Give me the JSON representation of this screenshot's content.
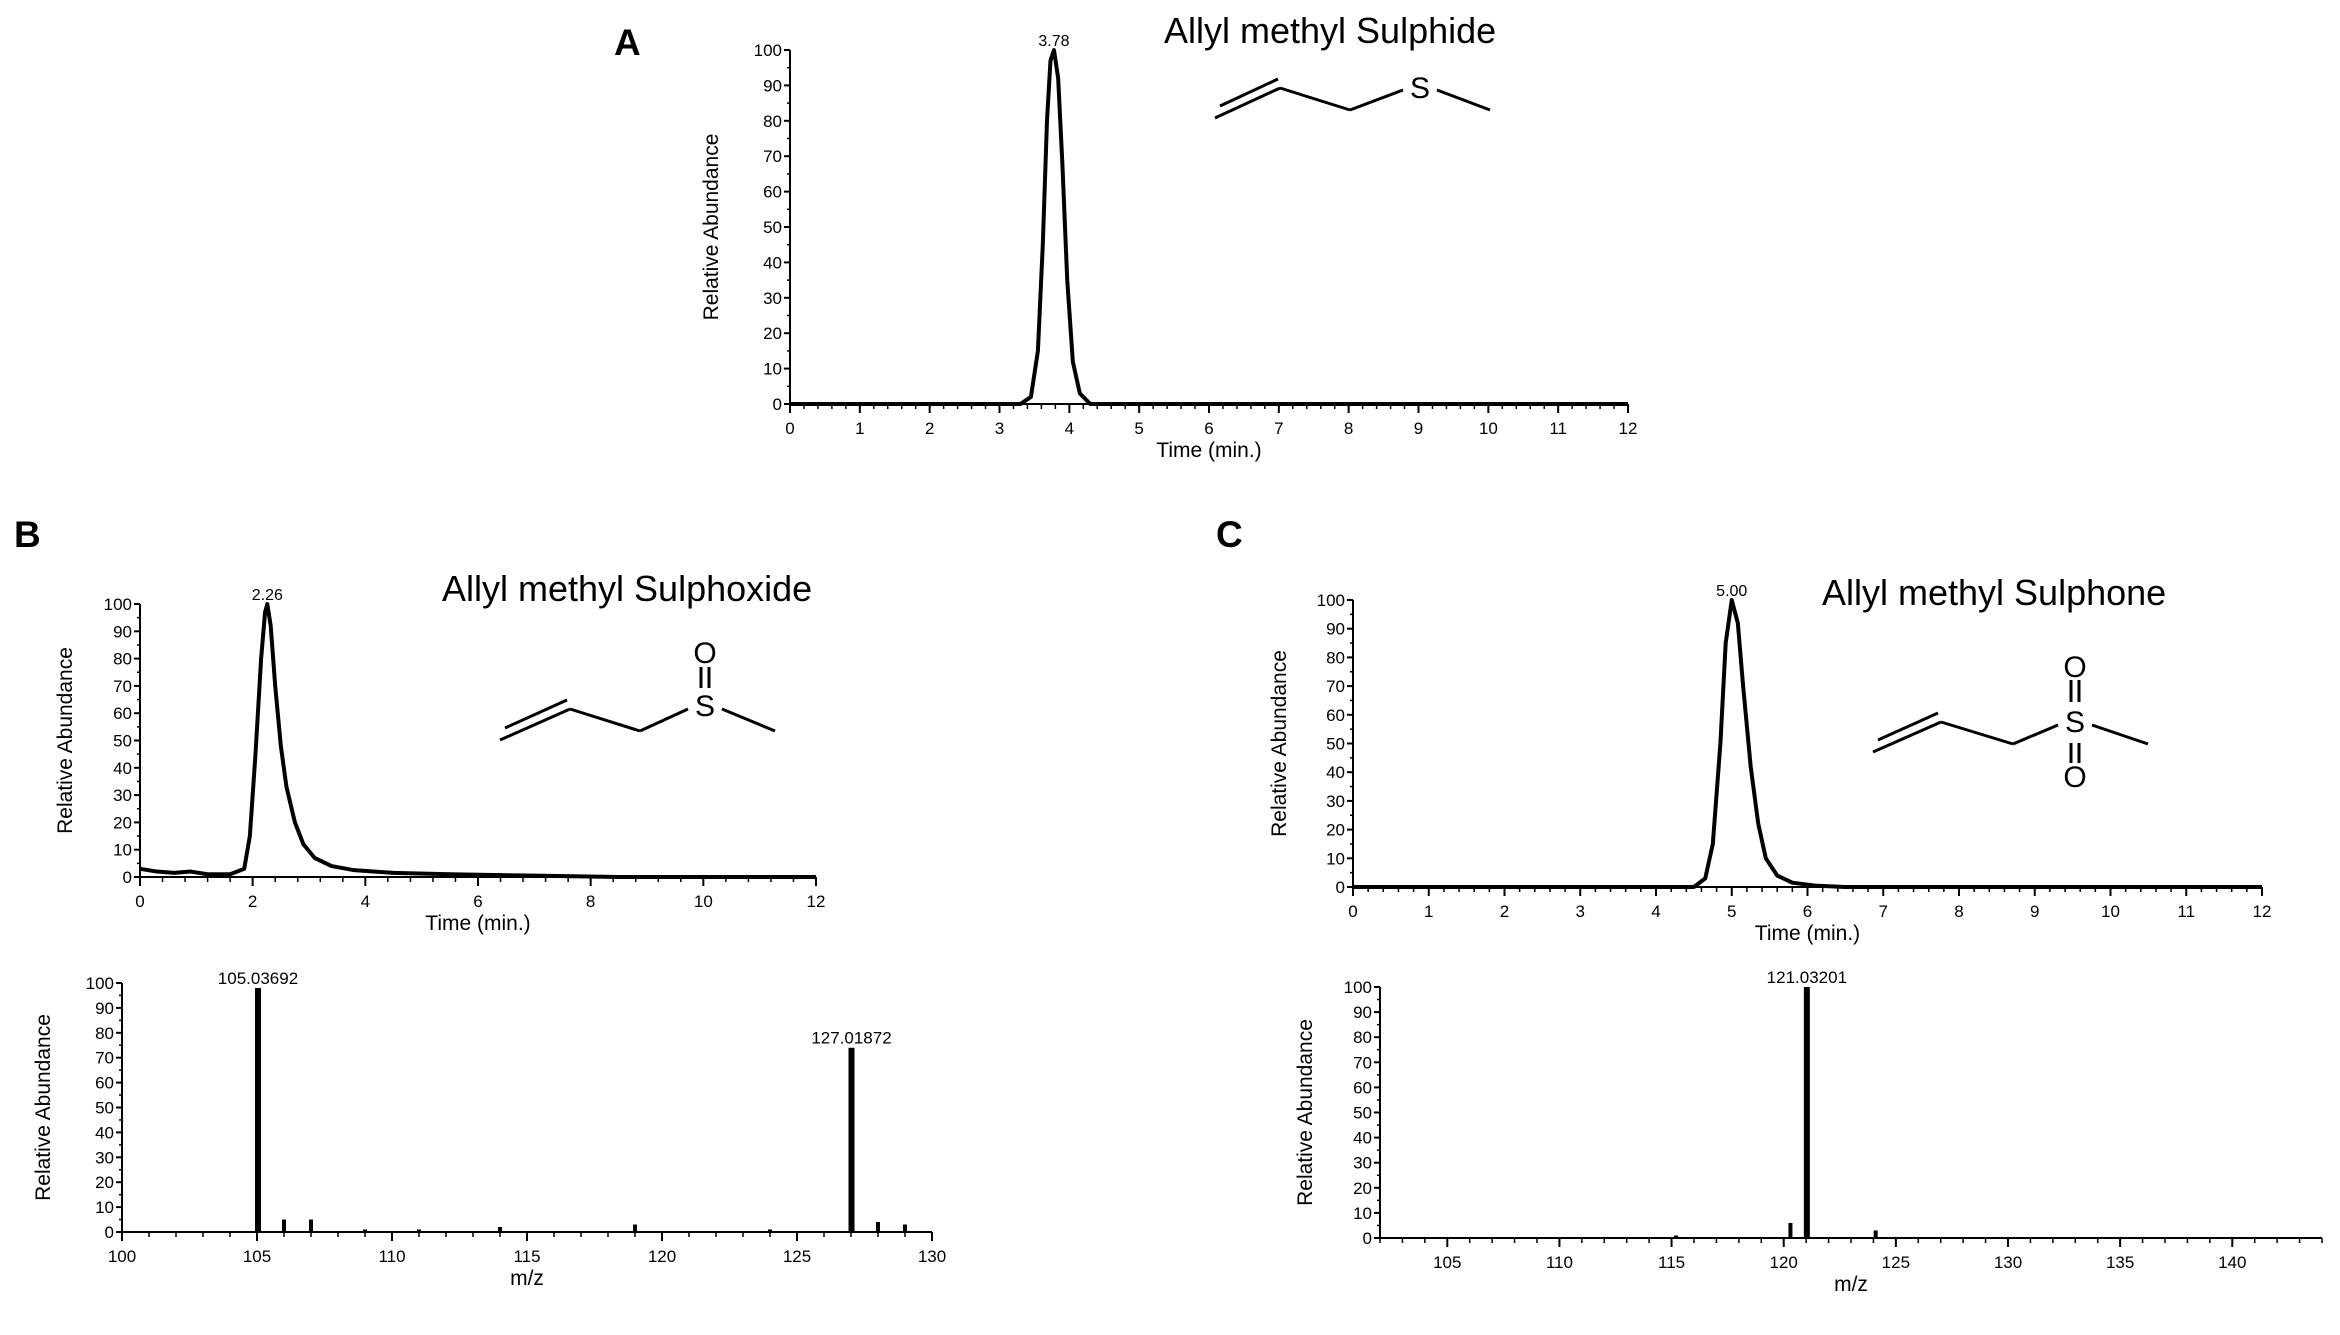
{
  "panels": [
    {
      "letter": "A",
      "title": "Allyl methyl Sulphide"
    },
    {
      "letter": "B",
      "title": "Allyl methyl Sulphoxide"
    },
    {
      "letter": "C",
      "title": "Allyl methyl Sulphone"
    }
  ],
  "structures": {
    "sulphide": {
      "atoms": [
        "S"
      ]
    },
    "sulphoxide": {
      "atoms": [
        "S",
        "O"
      ]
    },
    "sulphone": {
      "atoms": [
        "S",
        "O",
        "O"
      ]
    }
  },
  "chart_data": [
    {
      "id": "A-chromatogram",
      "type": "line",
      "title": "Allyl methyl Sulphide",
      "xlabel": "Time (min.)",
      "ylabel": "Relative Abundance",
      "xlim": [
        0,
        12
      ],
      "ylim": [
        0,
        100
      ],
      "xticks": [
        0,
        1,
        2,
        3,
        4,
        5,
        6,
        7,
        8,
        9,
        10,
        11,
        12
      ],
      "yticks": [
        0,
        10,
        20,
        30,
        40,
        50,
        60,
        70,
        80,
        90,
        100
      ],
      "grid": false,
      "peak": {
        "x": 3.78,
        "label": "3.78"
      },
      "series": [
        {
          "x": [
            0,
            3.3,
            3.45,
            3.55,
            3.62,
            3.68,
            3.73,
            3.78,
            3.84,
            3.9,
            3.97,
            4.05,
            4.15,
            4.3,
            12
          ],
          "y": [
            0,
            0,
            2,
            15,
            45,
            80,
            97,
            100,
            92,
            68,
            35,
            12,
            3,
            0,
            0
          ]
        }
      ]
    },
    {
      "id": "B-chromatogram",
      "type": "line",
      "title": "Allyl methyl Sulphoxide",
      "xlabel": "Time (min.)",
      "ylabel": "Relative Abundance",
      "xlim": [
        0,
        12
      ],
      "ylim": [
        0,
        100
      ],
      "xticks": [
        0,
        2,
        4,
        6,
        8,
        10,
        12
      ],
      "yticks": [
        0,
        10,
        20,
        30,
        40,
        50,
        60,
        70,
        80,
        90,
        100
      ],
      "grid": false,
      "peak": {
        "x": 2.26,
        "label": "2.26"
      },
      "series": [
        {
          "x": [
            0,
            0.3,
            0.6,
            0.9,
            1.2,
            1.6,
            1.85,
            1.95,
            2.05,
            2.15,
            2.22,
            2.26,
            2.32,
            2.4,
            2.5,
            2.6,
            2.75,
            2.9,
            3.1,
            3.4,
            3.8,
            4.5,
            5.5,
            7,
            8.5,
            12
          ],
          "y": [
            3,
            2,
            1.5,
            2,
            1,
            1,
            3,
            15,
            45,
            80,
            97,
            100,
            92,
            70,
            48,
            33,
            20,
            12,
            7,
            4,
            2.5,
            1.5,
            1,
            0.5,
            0,
            0
          ]
        }
      ]
    },
    {
      "id": "B-mass-spectrum",
      "type": "bar",
      "xlabel": "m/z",
      "ylabel": "Relative Abundance",
      "xlim": [
        100,
        130
      ],
      "ylim": [
        0,
        100
      ],
      "xticks": [
        100,
        105,
        110,
        115,
        120,
        125,
        130
      ],
      "yticks": [
        0,
        10,
        20,
        30,
        40,
        50,
        60,
        70,
        80,
        90,
        100
      ],
      "grid": false,
      "x": [
        105.03692,
        106,
        107,
        109,
        111,
        114,
        119,
        124,
        127.01872,
        128,
        129
      ],
      "values": [
        98,
        5,
        5,
        1,
        1,
        2,
        3,
        1,
        74,
        4,
        3
      ],
      "labels": [
        {
          "x": 105.03692,
          "text": "105.03692"
        },
        {
          "x": 127.01872,
          "text": "127.01872"
        }
      ]
    },
    {
      "id": "C-chromatogram",
      "type": "line",
      "title": "Allyl methyl Sulphone",
      "xlabel": "Time (min.)",
      "ylabel": "Relative Abundance",
      "xlim": [
        0,
        12
      ],
      "ylim": [
        0,
        100
      ],
      "xticks": [
        0,
        1,
        2,
        3,
        4,
        5,
        6,
        7,
        8,
        9,
        10,
        11,
        12
      ],
      "yticks": [
        0,
        10,
        20,
        30,
        40,
        50,
        60,
        70,
        80,
        90,
        100
      ],
      "grid": false,
      "peak": {
        "x": 5.0,
        "label": "5.00"
      },
      "series": [
        {
          "x": [
            0,
            4.5,
            4.65,
            4.75,
            4.85,
            4.92,
            5.0,
            5.08,
            5.15,
            5.25,
            5.35,
            5.45,
            5.6,
            5.8,
            6.1,
            6.5,
            12
          ],
          "y": [
            0,
            0,
            3,
            15,
            50,
            85,
            100,
            92,
            70,
            42,
            22,
            10,
            4,
            1.5,
            0.5,
            0,
            0
          ]
        }
      ]
    },
    {
      "id": "C-mass-spectrum",
      "type": "bar",
      "xlabel": "m/z",
      "ylabel": "Relative Abundance",
      "xlim": [
        102,
        144
      ],
      "ylim": [
        0,
        100
      ],
      "xticks": [
        105,
        110,
        115,
        120,
        125,
        130,
        135,
        140
      ],
      "yticks": [
        0,
        10,
        20,
        30,
        40,
        50,
        60,
        70,
        80,
        90,
        100
      ],
      "grid": false,
      "x": [
        115.2,
        120.3,
        121.03201,
        124.1
      ],
      "values": [
        1,
        6,
        100,
        3
      ],
      "labels": [
        {
          "x": 121.03201,
          "text": "121.03201"
        }
      ]
    }
  ]
}
